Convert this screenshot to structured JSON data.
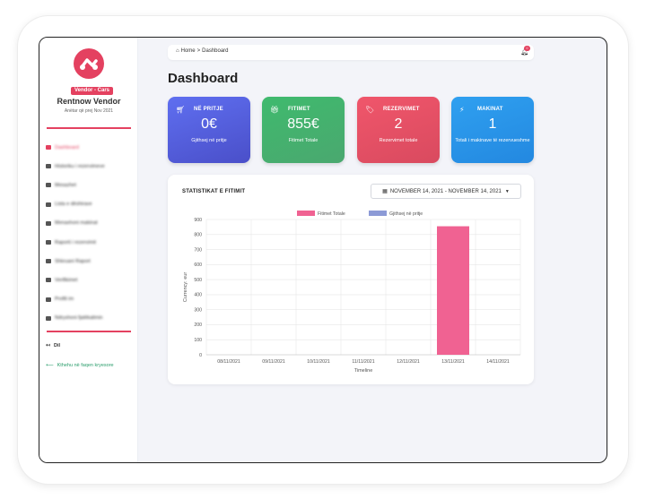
{
  "sidebar": {
    "badge": "Vendor - Cars",
    "vendor_name": "Rentnow Vendor",
    "member_since": "Anëtar që prej Nov 2021",
    "menu": [
      {
        "label": "Dashboard",
        "icon": "dashboard-icon",
        "active": true
      },
      {
        "label": "Historiku i rezervimeve",
        "icon": "history-icon"
      },
      {
        "label": "Mesazhet",
        "icon": "messages-icon"
      },
      {
        "label": "Lista e dëshirave",
        "icon": "heart-icon"
      },
      {
        "label": "Menaxhoni makinat",
        "icon": "car-icon"
      },
      {
        "label": "Raporti i rezervimit",
        "icon": "report-icon"
      },
      {
        "label": "Shkruani Raport",
        "icon": "write-icon"
      },
      {
        "label": "Verifikimet",
        "icon": "verify-icon"
      },
      {
        "label": "Profili im",
        "icon": "profile-icon"
      },
      {
        "label": "Ndryshoni fjalëkalimin",
        "icon": "lock-icon"
      }
    ],
    "logout_label": "Dil",
    "back_label": "Kthehu në faqen kryesore"
  },
  "topbar": {
    "home": "Home",
    "separator": ">",
    "current": "Dashboard",
    "notification_count": "0"
  },
  "page_title": "Dashboard",
  "cards": [
    {
      "title": "NË PRITJE",
      "value": "0€",
      "label": "Gjithsej në pritje",
      "icon": "cart-icon",
      "gradient": [
        "#5f6ff0",
        "#4a4fc9"
      ]
    },
    {
      "title": "FITIMET",
      "value": "855€",
      "label": "Fitimet Totale",
      "icon": "gift-icon",
      "gradient": [
        "#3fba6e",
        "#4aa86f"
      ]
    },
    {
      "title": "REZERVIMET",
      "value": "2",
      "label": "Rezervimet totale",
      "icon": "tag-icon",
      "gradient": [
        "#f0566b",
        "#d94a5f"
      ]
    },
    {
      "title": "MAKINAT",
      "value": "1",
      "label": "Totali i makinave të rezervueshme",
      "icon": "bolt-icon",
      "gradient": [
        "#2fa0f0",
        "#2388e0"
      ]
    }
  ],
  "chart_section": {
    "title": "STATISTIKAT E FITIMIT",
    "date_range": "NOVEMBER 14, 2021 - NOVEMBER 14, 2021"
  },
  "chart_data": {
    "type": "bar",
    "categories": [
      "08/11/2021",
      "09/11/2021",
      "10/11/2021",
      "11/11/2021",
      "12/11/2021",
      "13/11/2021",
      "14/11/2021"
    ],
    "series": [
      {
        "name": "Fitimet Totale",
        "values": [
          0,
          0,
          0,
          0,
          0,
          855,
          0
        ],
        "color": "#f06292"
      },
      {
        "name": "Gjithsej në pritje",
        "values": [
          0,
          0,
          0,
          0,
          0,
          0,
          0
        ],
        "color": "#8c9ad6"
      }
    ],
    "xlabel": "Timeline",
    "ylabel": "Currency: eur",
    "ylim": [
      0,
      900
    ],
    "yticks": [
      0,
      100,
      200,
      300,
      400,
      500,
      600,
      700,
      800,
      900
    ],
    "grid": true,
    "legend": "top-center"
  }
}
